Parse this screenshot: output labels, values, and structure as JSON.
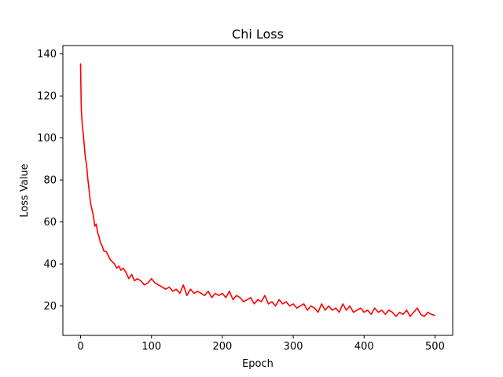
{
  "chart_data": {
    "type": "line",
    "title": "Chi Loss",
    "xlabel": "Epoch",
    "ylabel": "Loss Value",
    "xlim": [
      -25,
      525
    ],
    "ylim": [
      6,
      144
    ],
    "xticks": [
      0,
      100,
      200,
      300,
      400,
      500
    ],
    "yticks": [
      20,
      40,
      60,
      80,
      100,
      120,
      140
    ],
    "grid": false,
    "series": [
      {
        "color": "#ff0000",
        "x": [
          0,
          1,
          2,
          3,
          4,
          5,
          6,
          7,
          8,
          9,
          10,
          12,
          14,
          16,
          18,
          20,
          22,
          24,
          26,
          28,
          30,
          33,
          36,
          39,
          42,
          45,
          48,
          51,
          54,
          57,
          60,
          64,
          68,
          72,
          76,
          80,
          85,
          90,
          95,
          100,
          105,
          110,
          115,
          120,
          125,
          130,
          135,
          140,
          145,
          150,
          155,
          160,
          165,
          170,
          175,
          180,
          185,
          190,
          195,
          200,
          205,
          210,
          215,
          220,
          225,
          230,
          235,
          240,
          245,
          250,
          255,
          260,
          265,
          270,
          275,
          280,
          285,
          290,
          295,
          300,
          305,
          310,
          315,
          320,
          325,
          330,
          335,
          340,
          345,
          350,
          355,
          360,
          365,
          370,
          375,
          380,
          385,
          390,
          395,
          400,
          405,
          410,
          415,
          420,
          425,
          430,
          435,
          440,
          445,
          450,
          455,
          460,
          465,
          470,
          475,
          480,
          485,
          490,
          495,
          500
        ],
        "y": [
          135.5,
          114,
          108,
          104,
          101,
          97,
          93,
          90,
          88,
          85,
          81,
          75,
          69,
          66,
          63,
          58,
          59,
          55,
          53,
          50,
          49,
          46,
          46,
          44,
          42,
          41,
          40,
          38,
          39,
          37,
          38,
          36,
          33,
          35,
          32,
          33,
          32,
          30,
          31,
          33,
          31,
          30,
          29,
          28,
          29,
          27,
          28,
          26,
          30,
          25,
          28,
          26,
          27,
          26,
          25,
          27,
          24,
          26,
          25,
          26,
          24,
          27,
          23,
          25,
          24,
          22,
          23,
          24,
          21,
          23,
          22,
          25,
          21,
          22,
          20,
          23,
          21,
          22,
          20,
          21,
          19,
          20,
          21,
          18,
          20,
          19,
          17,
          21,
          18,
          20,
          18,
          19,
          17,
          21,
          18,
          20,
          17,
          18,
          19,
          17,
          18,
          16,
          19,
          17,
          18,
          16,
          18,
          17,
          15,
          17,
          16,
          18,
          15,
          17,
          19,
          16,
          15,
          17,
          16,
          15.5
        ]
      }
    ]
  }
}
